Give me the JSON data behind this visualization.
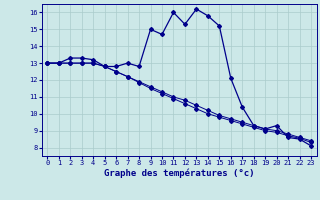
{
  "xlabel": "Graphe des températures (°c)",
  "x_hours": [
    0,
    1,
    2,
    3,
    4,
    5,
    6,
    7,
    8,
    9,
    10,
    11,
    12,
    13,
    14,
    15,
    16,
    17,
    18,
    19,
    20,
    21,
    22,
    23
  ],
  "line1": [
    13,
    13,
    13.3,
    13.3,
    13.2,
    12.8,
    12.8,
    13.0,
    12.8,
    15.0,
    14.7,
    16.0,
    15.3,
    16.2,
    15.8,
    15.2,
    12.1,
    10.4,
    9.3,
    9.1,
    9.3,
    8.6,
    8.5,
    8.1
  ],
  "line2": [
    13,
    13,
    13,
    13,
    13,
    12.8,
    12.5,
    12.2,
    11.9,
    11.6,
    11.3,
    11.0,
    10.8,
    10.5,
    10.2,
    9.9,
    9.7,
    9.5,
    9.3,
    9.1,
    9.0,
    8.8,
    8.6,
    8.4
  ],
  "line3": [
    13,
    13,
    13,
    13,
    13,
    12.8,
    12.5,
    12.2,
    11.85,
    11.5,
    11.2,
    10.9,
    10.6,
    10.3,
    10.0,
    9.8,
    9.6,
    9.4,
    9.2,
    9.0,
    8.9,
    8.7,
    8.55,
    8.3
  ],
  "line_color": "#00008b",
  "marker": "D",
  "marker_size": 2.0,
  "bg_color": "#cce8e8",
  "grid_color": "#aacccc",
  "ylim": [
    7.5,
    16.5
  ],
  "yticks": [
    8,
    9,
    10,
    11,
    12,
    13,
    14,
    15,
    16
  ],
  "xlim": [
    -0.5,
    23.5
  ],
  "xlabel_fontsize": 6.5,
  "tick_fontsize": 5.0
}
